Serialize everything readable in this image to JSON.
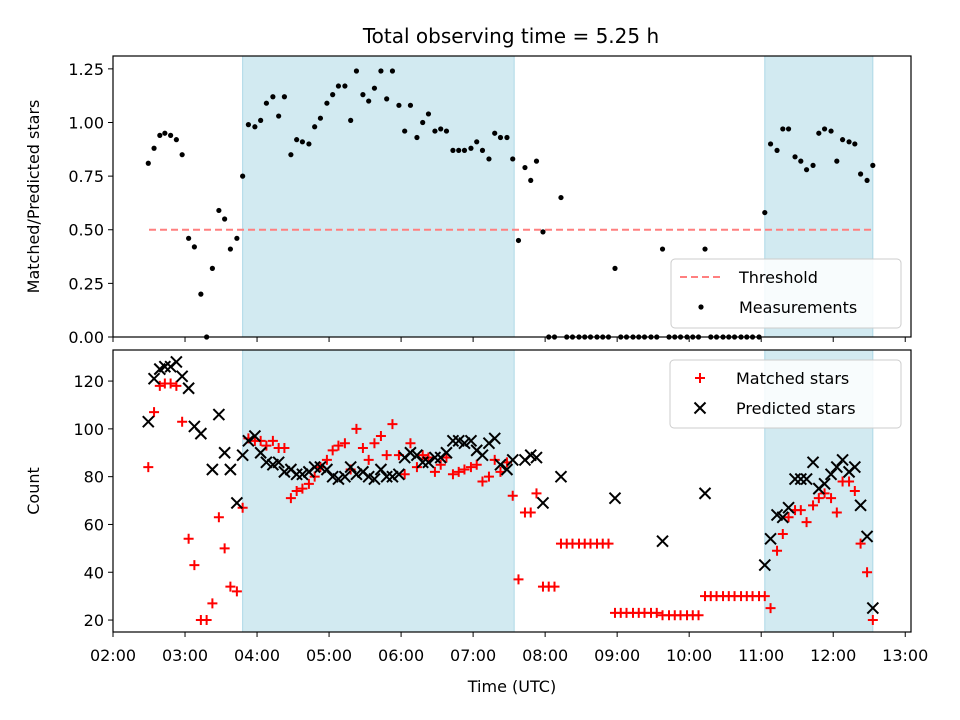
{
  "title": "Total observing time = 5.25 h",
  "colors": {
    "shade": "#add8e6",
    "threshold": "#ff7f7f",
    "measurement": "#000000",
    "matched": "#ff0000",
    "predicted": "#000000"
  },
  "chart_data": [
    {
      "type": "scatter",
      "panel": "top",
      "title": "Total observing time = 5.25 h",
      "xlabel": "",
      "ylabel": "Matched/Predicted stars",
      "x_unit": "hours UTC",
      "xlim": [
        2.0,
        13.08
      ],
      "ylim": [
        0.0,
        1.31
      ],
      "yticks": [
        0.0,
        0.25,
        0.5,
        0.75,
        1.0,
        1.25
      ],
      "ytick_labels": [
        "0.00",
        "0.25",
        "0.50",
        "0.75",
        "1.00",
        "1.25"
      ],
      "legend_position": "bottom-right",
      "shaded_intervals": [
        [
          3.8,
          7.57
        ],
        [
          11.05,
          12.55
        ]
      ],
      "threshold": {
        "name": "Threshold",
        "value": 0.5,
        "x_range": [
          2.5,
          12.55
        ],
        "style": "dashed"
      },
      "series": [
        {
          "name": "Measurements",
          "marker": "dot",
          "x": [
            2.49,
            2.57,
            2.65,
            2.72,
            2.8,
            2.88,
            2.96,
            3.05,
            3.13,
            3.22,
            3.3,
            3.38,
            3.47,
            3.55,
            3.63,
            3.72,
            3.8,
            3.88,
            3.97,
            4.05,
            4.13,
            4.22,
            4.3,
            4.38,
            4.47,
            4.55,
            4.63,
            4.72,
            4.8,
            4.88,
            4.97,
            5.05,
            5.13,
            5.22,
            5.3,
            5.38,
            5.47,
            5.55,
            5.63,
            5.72,
            5.8,
            5.88,
            5.97,
            6.05,
            6.13,
            6.22,
            6.3,
            6.38,
            6.47,
            6.55,
            6.63,
            6.72,
            6.8,
            6.88,
            6.97,
            7.05,
            7.13,
            7.22,
            7.3,
            7.38,
            7.47,
            7.55,
            7.63,
            7.72,
            7.8,
            7.88,
            7.97,
            8.05,
            8.13,
            8.22,
            8.3,
            8.38,
            8.47,
            8.55,
            8.63,
            8.72,
            8.8,
            8.88,
            8.97,
            9.05,
            9.13,
            9.22,
            9.3,
            9.38,
            9.47,
            9.55,
            9.63,
            9.72,
            9.8,
            9.88,
            9.97,
            10.05,
            10.13,
            10.22,
            10.3,
            10.38,
            10.47,
            10.55,
            10.63,
            10.72,
            10.8,
            10.88,
            10.97,
            11.05,
            11.13,
            11.22,
            11.3,
            11.38,
            11.47,
            11.55,
            11.63,
            11.72,
            11.8,
            11.88,
            11.97,
            12.05,
            12.13,
            12.22,
            12.3,
            12.38,
            12.47,
            12.55
          ],
          "y": [
            0.81,
            0.88,
            0.94,
            0.95,
            0.94,
            0.92,
            0.85,
            0.46,
            0.42,
            0.2,
            0.0,
            0.32,
            0.59,
            0.55,
            0.41,
            0.46,
            0.75,
            0.99,
            0.98,
            1.01,
            1.09,
            1.12,
            1.03,
            1.12,
            0.85,
            0.92,
            0.91,
            0.9,
            0.98,
            1.02,
            1.09,
            1.13,
            1.17,
            1.17,
            1.01,
            1.24,
            1.13,
            1.1,
            1.16,
            1.24,
            1.11,
            1.24,
            1.08,
            0.96,
            1.08,
            0.93,
            1.0,
            1.04,
            0.96,
            0.97,
            0.96,
            0.87,
            0.87,
            0.87,
            0.88,
            0.91,
            0.87,
            0.83,
            0.95,
            0.93,
            0.93,
            0.83,
            0.45,
            0.79,
            0.73,
            0.82,
            0.49,
            0.0,
            0.0,
            0.65,
            0.0,
            0.0,
            0.0,
            0.0,
            0.0,
            0.0,
            0.0,
            0.0,
            0.32,
            0.0,
            0.0,
            0.0,
            0.0,
            0.0,
            0.0,
            0.0,
            0.41,
            0.0,
            0.0,
            0.0,
            0.0,
            0.0,
            0.0,
            0.41,
            0.0,
            0.0,
            0.0,
            0.0,
            0.0,
            0.0,
            0.0,
            0.0,
            0.0,
            0.58,
            0.9,
            0.87,
            0.97,
            0.97,
            0.84,
            0.82,
            0.78,
            0.8,
            0.95,
            0.97,
            0.96,
            0.82,
            0.92,
            0.91,
            0.9,
            0.76,
            0.73,
            0.8
          ]
        }
      ]
    },
    {
      "type": "scatter",
      "panel": "bottom",
      "title": "",
      "xlabel": "Time (UTC)",
      "ylabel": "Count",
      "x_unit": "hours UTC",
      "xlim": [
        2.0,
        13.08
      ],
      "ylim": [
        15,
        133
      ],
      "xticks": [
        2,
        3,
        4,
        5,
        6,
        7,
        8,
        9,
        10,
        11,
        12,
        13
      ],
      "xtick_labels": [
        "02:00",
        "03:00",
        "04:00",
        "05:00",
        "06:00",
        "07:00",
        "08:00",
        "09:00",
        "10:00",
        "11:00",
        "12:00",
        "13:00"
      ],
      "yticks": [
        20,
        40,
        60,
        80,
        100,
        120
      ],
      "ytick_labels": [
        "20",
        "40",
        "60",
        "80",
        "100",
        "120"
      ],
      "legend_position": "top-right",
      "shaded_intervals": [
        [
          3.8,
          7.57
        ],
        [
          11.05,
          12.55
        ]
      ],
      "series": [
        {
          "name": "Matched stars",
          "marker": "plus",
          "x": [
            2.49,
            2.57,
            2.65,
            2.72,
            2.8,
            2.88,
            2.96,
            3.05,
            3.13,
            3.22,
            3.3,
            3.38,
            3.47,
            3.55,
            3.63,
            3.72,
            3.8,
            3.88,
            3.97,
            4.05,
            4.13,
            4.22,
            4.3,
            4.38,
            4.47,
            4.55,
            4.63,
            4.72,
            4.8,
            4.88,
            4.97,
            5.05,
            5.13,
            5.22,
            5.3,
            5.38,
            5.47,
            5.55,
            5.63,
            5.72,
            5.8,
            5.88,
            5.97,
            6.05,
            6.13,
            6.22,
            6.3,
            6.38,
            6.47,
            6.55,
            6.63,
            6.72,
            6.8,
            6.88,
            6.97,
            7.05,
            7.13,
            7.22,
            7.3,
            7.38,
            7.47,
            7.55,
            7.63,
            7.72,
            7.8,
            7.88,
            7.97,
            8.05,
            8.13,
            8.22,
            8.3,
            8.38,
            8.47,
            8.55,
            8.63,
            8.72,
            8.8,
            8.88,
            8.97,
            9.05,
            9.13,
            9.22,
            9.3,
            9.38,
            9.47,
            9.55,
            9.63,
            9.72,
            9.8,
            9.88,
            9.97,
            10.05,
            10.13,
            10.22,
            10.3,
            10.38,
            10.47,
            10.55,
            10.63,
            10.72,
            10.8,
            10.88,
            10.97,
            11.05,
            11.13,
            11.22,
            11.3,
            11.38,
            11.47,
            11.55,
            11.63,
            11.72,
            11.8,
            11.88,
            11.97,
            12.05,
            12.13,
            12.22,
            12.3,
            12.38,
            12.47,
            12.55
          ],
          "y": [
            84,
            107,
            118,
            119,
            119,
            118,
            103,
            54,
            43,
            20,
            20,
            27,
            63,
            50,
            34,
            32,
            67,
            96,
            95,
            95,
            93,
            95,
            92,
            92,
            71,
            74,
            75,
            77,
            80,
            84,
            87,
            91,
            93,
            94,
            83,
            100,
            92,
            87,
            94,
            97,
            89,
            102,
            89,
            81,
            94,
            84,
            89,
            88,
            82,
            85,
            88,
            81,
            82,
            83,
            84,
            85,
            78,
            80,
            87,
            82,
            86,
            72,
            37,
            65,
            65,
            73,
            34,
            34,
            34,
            52,
            52,
            52,
            52,
            52,
            52,
            52,
            52,
            52,
            23,
            23,
            23,
            23,
            23,
            23,
            23,
            23,
            22,
            22,
            22,
            22,
            22,
            22,
            22,
            30,
            30,
            30,
            30,
            30,
            30,
            30,
            30,
            30,
            30,
            30,
            25,
            49,
            56,
            63,
            66,
            66,
            61,
            68,
            71,
            73,
            71,
            65,
            78,
            78,
            74,
            52,
            40,
            20
          ]
        },
        {
          "name": "Predicted stars",
          "marker": "x",
          "x": [
            2.49,
            2.57,
            2.65,
            2.72,
            2.8,
            2.88,
            2.96,
            3.05,
            3.13,
            3.22,
            3.38,
            3.47,
            3.55,
            3.63,
            3.72,
            3.8,
            3.88,
            3.97,
            4.05,
            4.13,
            4.22,
            4.3,
            4.38,
            4.47,
            4.55,
            4.63,
            4.72,
            4.8,
            4.88,
            4.97,
            5.05,
            5.13,
            5.22,
            5.3,
            5.38,
            5.47,
            5.55,
            5.63,
            5.72,
            5.8,
            5.88,
            5.97,
            6.05,
            6.13,
            6.22,
            6.3,
            6.38,
            6.47,
            6.55,
            6.63,
            6.72,
            6.8,
            6.88,
            6.97,
            7.05,
            7.13,
            7.22,
            7.3,
            7.38,
            7.47,
            7.55,
            7.72,
            7.8,
            7.88,
            7.97,
            8.22,
            8.97,
            9.63,
            10.22,
            11.05,
            11.13,
            11.22,
            11.3,
            11.38,
            11.47,
            11.55,
            11.63,
            11.72,
            11.8,
            11.88,
            11.97,
            12.05,
            12.13,
            12.22,
            12.3,
            12.38,
            12.47,
            12.55
          ],
          "y": [
            103,
            121,
            125,
            126,
            126,
            128,
            122,
            117,
            101,
            98,
            83,
            106,
            90,
            83,
            69,
            89,
            95,
            97,
            90,
            86,
            85,
            86,
            82,
            83,
            81,
            81,
            82,
            84,
            84,
            83,
            80,
            79,
            80,
            84,
            81,
            82,
            80,
            79,
            83,
            80,
            80,
            81,
            88,
            90,
            89,
            86,
            86,
            88,
            88,
            90,
            95,
            95,
            94,
            95,
            91,
            89,
            94,
            96,
            85,
            83,
            87,
            87,
            89,
            88,
            69,
            80,
            71,
            53,
            73,
            43,
            54,
            64,
            63,
            67,
            79,
            79,
            79,
            86,
            75,
            77,
            81,
            84,
            87,
            82,
            84,
            68,
            55,
            25
          ]
        }
      ]
    }
  ]
}
